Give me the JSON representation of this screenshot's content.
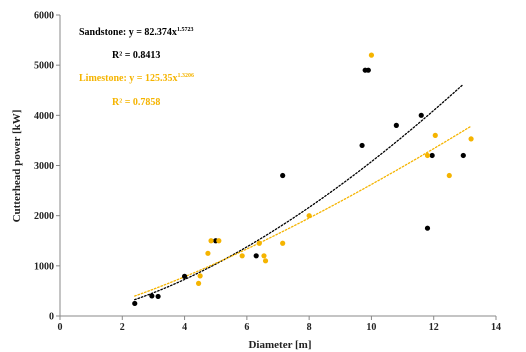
{
  "chart_data": {
    "type": "scatter",
    "xlabel": "Diameter [m]",
    "ylabel": "Cutterhead power [kW]",
    "xlim": [
      0,
      14
    ],
    "ylim": [
      0,
      6000
    ],
    "xticks": [
      "0",
      "2",
      "4",
      "6",
      "8",
      "10",
      "12",
      "14"
    ],
    "yticks": [
      "0",
      "1000",
      "2000",
      "3000",
      "4000",
      "5000",
      "6000"
    ],
    "grid": false,
    "legend": "none",
    "series": [
      {
        "name": "Sandstone",
        "color": "#000000",
        "points": [
          [
            2.4,
            250
          ],
          [
            2.95,
            400
          ],
          [
            3.15,
            390
          ],
          [
            4.0,
            790
          ],
          [
            5.0,
            1500
          ],
          [
            6.3,
            1200
          ],
          [
            7.15,
            2800
          ],
          [
            9.7,
            3400
          ],
          [
            9.8,
            4900
          ],
          [
            9.9,
            4900
          ],
          [
            10.8,
            3800
          ],
          [
            11.6,
            4000
          ],
          [
            11.8,
            1750
          ],
          [
            11.95,
            3200
          ],
          [
            12.95,
            3200
          ]
        ],
        "trend": {
          "a": 82.374,
          "b": 1.5723
        }
      },
      {
        "name": "Limestone",
        "color": "#f5b400",
        "points": [
          [
            4.45,
            650
          ],
          [
            4.5,
            800
          ],
          [
            4.75,
            1250
          ],
          [
            4.85,
            1500
          ],
          [
            5.1,
            1500
          ],
          [
            5.85,
            1200
          ],
          [
            6.4,
            1450
          ],
          [
            6.55,
            1200
          ],
          [
            6.6,
            1100
          ],
          [
            7.15,
            1450
          ],
          [
            8.0,
            2000
          ],
          [
            10.0,
            5200
          ],
          [
            11.8,
            3200
          ],
          [
            12.05,
            3600
          ],
          [
            12.5,
            2800
          ],
          [
            13.2,
            3530
          ]
        ],
        "trend": {
          "a": 125.35,
          "b": 1.3206
        }
      }
    ],
    "annotations": {
      "sandstone_eq": "Sandstone: y = 82.374x",
      "sandstone_exp": "1.5723",
      "sandstone_r2": "R² = 0.8413",
      "limestone_eq": "Limestone: y = 125.35x",
      "limestone_exp": "1.3206",
      "limestone_r2": "R² = 0.7858"
    }
  }
}
